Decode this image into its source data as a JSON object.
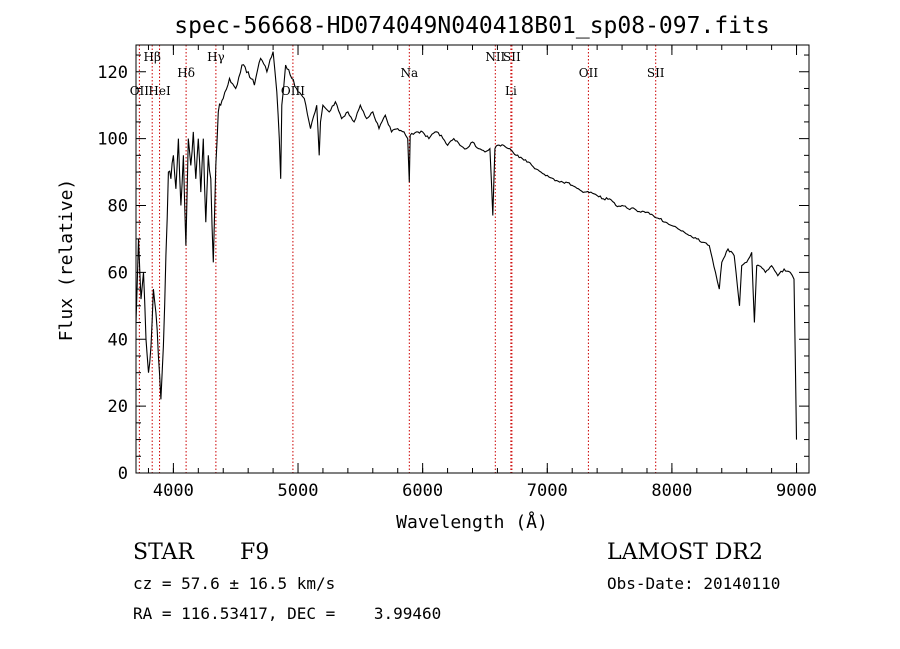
{
  "chart_data": {
    "type": "line",
    "title": "spec-56668-HD074049N040418B01_sp08-097.fits",
    "xlabel": "Wavelength (Å)",
    "ylabel": "Flux (relative)",
    "xlim": [
      3700,
      9100
    ],
    "ylim": [
      0,
      128
    ],
    "xticks": [
      "4000",
      "5000",
      "6000",
      "7000",
      "8000",
      "9000"
    ],
    "yticks": [
      "0",
      "20",
      "40",
      "60",
      "80",
      "100",
      "120"
    ],
    "series": [
      {
        "x": [
          3700,
          3720,
          3740,
          3760,
          3780,
          3800,
          3820,
          3840,
          3860,
          3880,
          3900,
          3920,
          3940,
          3960,
          3980,
          4000,
          4020,
          4040,
          4060,
          4080,
          4100,
          4120,
          4140,
          4160,
          4180,
          4200,
          4220,
          4240,
          4260,
          4280,
          4300,
          4320,
          4340,
          4360,
          4380,
          4400,
          4450,
          4500,
          4550,
          4600,
          4650,
          4700,
          4750,
          4800,
          4830,
          4850,
          4861,
          4870,
          4900,
          4950,
          5000,
          5050,
          5100,
          5150,
          5170,
          5180,
          5200,
          5250,
          5300,
          5350,
          5400,
          5450,
          5500,
          5550,
          5600,
          5650,
          5700,
          5750,
          5800,
          5850,
          5880,
          5893,
          5900,
          5950,
          6000,
          6050,
          6100,
          6150,
          6200,
          6250,
          6300,
          6350,
          6400,
          6450,
          6500,
          6540,
          6563,
          6580,
          6600,
          6650,
          6700,
          6750,
          6800,
          6850,
          6900,
          6950,
          7000,
          7050,
          7100,
          7150,
          7200,
          7250,
          7300,
          7350,
          7400,
          7450,
          7500,
          7550,
          7600,
          7650,
          7700,
          7750,
          7800,
          7850,
          7900,
          7950,
          8000,
          8050,
          8100,
          8150,
          8200,
          8250,
          8300,
          8350,
          8380,
          8400,
          8450,
          8500,
          8542,
          8560,
          8600,
          8640,
          8662,
          8680,
          8700,
          8750,
          8800,
          8850,
          8900,
          8950,
          8980,
          9000
        ],
        "y": [
          45,
          70,
          52,
          60,
          40,
          30,
          38,
          55,
          48,
          35,
          22,
          38,
          65,
          90,
          88,
          95,
          85,
          100,
          80,
          95,
          68,
          100,
          92,
          102,
          88,
          100,
          84,
          100,
          75,
          95,
          88,
          63,
          92,
          108,
          110,
          112,
          118,
          115,
          122,
          120,
          116,
          124,
          120,
          126,
          114,
          100,
          88,
          110,
          122,
          118,
          114,
          112,
          103,
          110,
          95,
          105,
          110,
          108,
          111,
          106,
          108,
          105,
          110,
          106,
          108,
          103,
          107,
          102,
          103,
          102,
          100,
          87,
          101,
          102,
          102,
          100,
          102,
          101,
          98,
          100,
          98,
          97,
          99,
          97,
          96,
          97,
          77,
          97,
          98,
          98,
          97,
          95,
          94,
          93,
          91,
          90,
          89,
          88,
          87,
          87,
          86,
          85,
          84,
          84,
          83,
          82,
          82,
          80,
          80,
          79,
          79,
          78,
          78,
          77,
          76,
          75,
          74,
          73,
          72,
          71,
          70,
          69,
          68,
          60,
          55,
          63,
          67,
          65,
          50,
          62,
          63,
          66,
          45,
          62,
          62,
          60,
          62,
          59,
          61,
          60,
          58,
          10
        ]
      }
    ],
    "line_labels": [
      {
        "label": "Hβ",
        "x": 3830
      },
      {
        "label": "OII",
        "x": 3727
      },
      {
        "label": "HeI",
        "x": 3889
      },
      {
        "label": "Hδ",
        "x": 4102
      },
      {
        "label": "Hγ",
        "x": 4341
      },
      {
        "label": "OIII",
        "x": 4959
      },
      {
        "label": "Na",
        "x": 5893
      },
      {
        "label": "NII",
        "x": 6583
      },
      {
        "label": "SII",
        "x": 6716
      },
      {
        "label": "Li",
        "x": 6708
      },
      {
        "label": "OII",
        "x": 7330
      },
      {
        "label": "SII",
        "x": 7870
      }
    ],
    "marker_lines_x": [
      3727,
      3830,
      3889,
      4102,
      4341,
      4959,
      5893,
      6583,
      6708,
      6716,
      7330,
      7870
    ],
    "marker_color": "#cc0000",
    "grid": false
  },
  "footer": {
    "class_label": "STAR",
    "subclass": "F9",
    "survey": "LAMOST DR2",
    "cz": "cz = 57.6 ± 16.5 km/s",
    "obs_date": "Obs-Date: 20140110",
    "radec": "RA = 116.53417, DEC =    3.99460"
  }
}
